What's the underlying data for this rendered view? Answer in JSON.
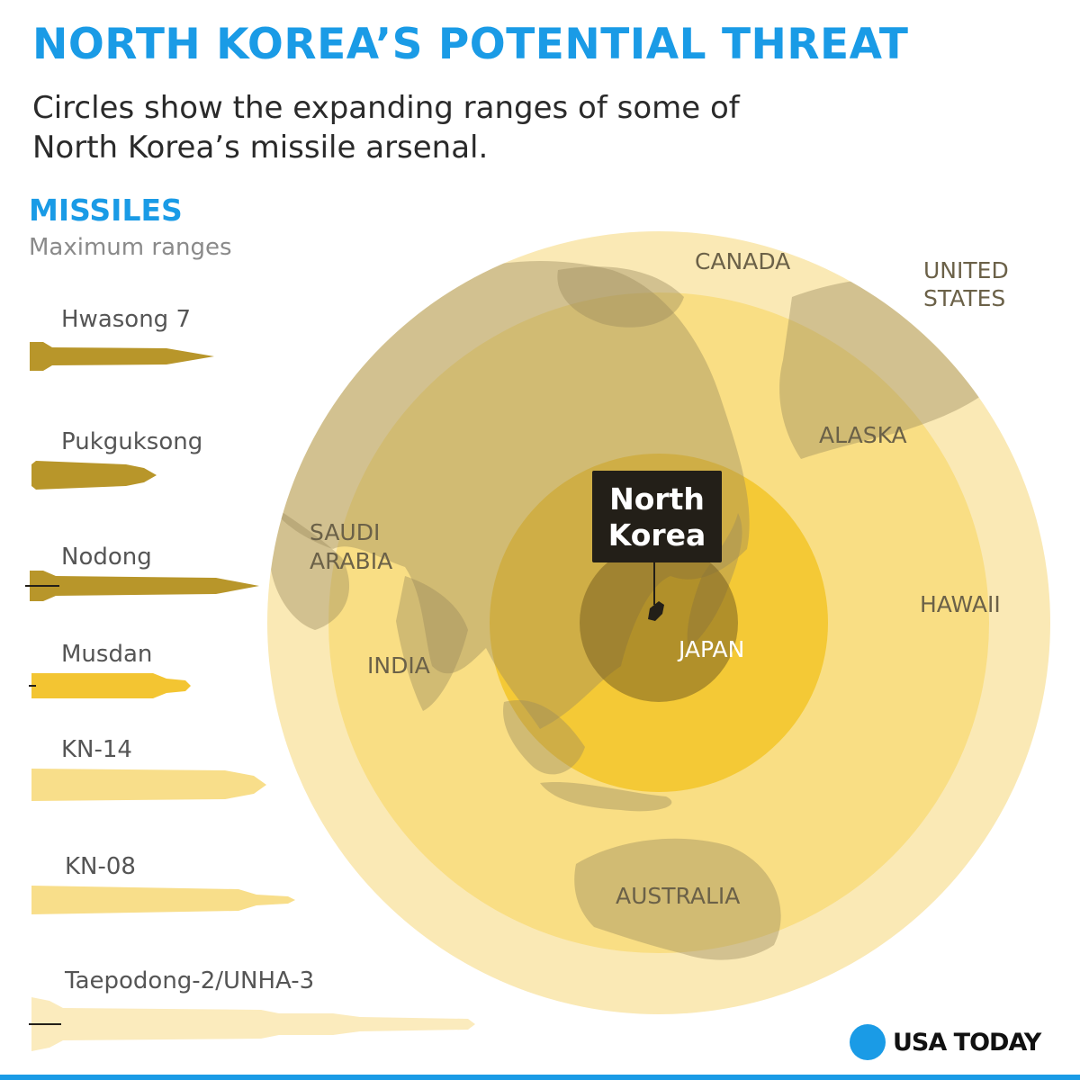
{
  "header": {
    "title": "NORTH KOREA’S POTENTIAL THREAT",
    "subtitle": "Circles show the expanding ranges of some of North Korea’s missile arsenal."
  },
  "missiles": {
    "heading": "MISSILES",
    "subheading": "Maximum ranges",
    "items": [
      {
        "name": "Hwasong 7",
        "color": "#b8962a"
      },
      {
        "name": "Pukguksong",
        "color": "#b8962a"
      },
      {
        "name": "Nodong",
        "color": "#b8962a"
      },
      {
        "name": "Musdan",
        "color": "#f3c532"
      },
      {
        "name": "KN-14",
        "color": "#f8de8a"
      },
      {
        "name": "KN-08",
        "color": "#f8de8a"
      },
      {
        "name": "Taepodong-2/UNHA-3",
        "color": "#fbebbd"
      }
    ]
  },
  "map": {
    "callout": {
      "line1": "North",
      "line2": "Korea"
    },
    "places": {
      "canada": "CANADA",
      "united_states_1": "UNITED",
      "united_states_2": "STATES",
      "alaska": "ALASKA",
      "saudi_1": "SAUDI",
      "saudi_2": "ARABIA",
      "hawaii": "HAWAII",
      "india": "INDIA",
      "japan": "JAPAN",
      "australia": "AUSTRALIA"
    },
    "colors": {
      "land": "#b5a77c",
      "ring_outer": "#fae9b5",
      "ring_4": "#f9de84",
      "ring_3": "#f4c936",
      "ring_2": "#d6a82a",
      "ring_core": "#7a6020"
    }
  },
  "brand": {
    "name": "USA TODAY",
    "accent": "#1a9be6"
  }
}
